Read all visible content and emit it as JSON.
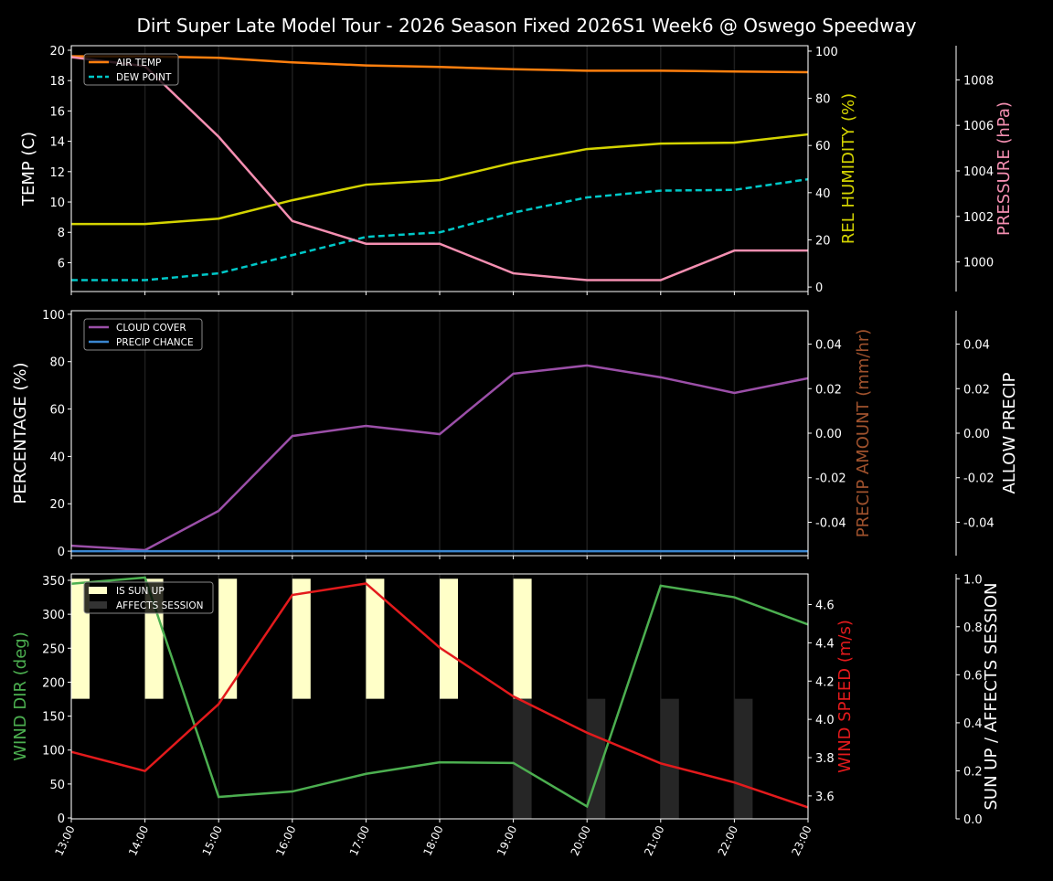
{
  "chart_data": [
    {
      "type": "line",
      "title": "Dirt Super Late Model Tour - 2026 Season Fixed 2026S1 Week6 @ Oswego Speedway",
      "x": [
        "13:00",
        "14:00",
        "15:00",
        "16:00",
        "17:00",
        "18:00",
        "19:00",
        "20:00",
        "21:00",
        "22:00",
        "23:00"
      ],
      "grid": "vertical",
      "legend_position": "top-left",
      "axes": {
        "left": {
          "label": "TEMP (C)",
          "ylim": [
            4.1,
            20.3
          ],
          "ticks": [
            6,
            8,
            10,
            12,
            14,
            16,
            18,
            20
          ],
          "color": "#ffffff"
        },
        "right": {
          "label": "REL HUMIDITY (%)",
          "ylim": [
            -1.9,
            102.3
          ],
          "ticks": [
            0,
            20,
            40,
            60,
            80,
            100
          ],
          "color": "#d4d400"
        },
        "third": {
          "label": "PRESSURE (hPa)",
          "ylim": [
            998.7,
            1009.5
          ],
          "ticks": [
            1000,
            1002,
            1004,
            1006,
            1008
          ],
          "color": "#f48fb1"
        }
      },
      "series": [
        {
          "name": "AIR TEMP",
          "axis": "left",
          "color": "#ff7f0e",
          "style": "solid",
          "in_legend": true,
          "values": [
            19.6,
            19.6,
            19.5,
            19.2,
            19.0,
            18.9,
            18.75,
            18.65,
            18.65,
            18.6,
            18.55
          ]
        },
        {
          "name": "DEW POINT",
          "axis": "left",
          "color": "#00c8c8",
          "style": "dashed",
          "in_legend": true,
          "values": [
            4.85,
            4.85,
            5.3,
            6.5,
            7.7,
            8.0,
            9.3,
            10.3,
            10.75,
            10.8,
            11.5
          ]
        },
        {
          "name": "REL HUMIDITY",
          "axis": "right",
          "color": "#d4d400",
          "style": "solid",
          "in_legend": false,
          "values": [
            26.7,
            26.7,
            29,
            36.8,
            43.4,
            45.3,
            52.7,
            58.5,
            60.8,
            61.2,
            64.7
          ]
        },
        {
          "name": "PRESSURE",
          "axis": "third",
          "color": "#f48fb1",
          "style": "solid",
          "in_legend": false,
          "values": [
            1009.0,
            1008.6,
            1005.5,
            1001.8,
            1000.8,
            1000.8,
            999.5,
            999.2,
            999.2,
            1000.5,
            1000.5
          ]
        }
      ]
    },
    {
      "type": "line",
      "x": [
        "13:00",
        "14:00",
        "15:00",
        "16:00",
        "17:00",
        "18:00",
        "19:00",
        "20:00",
        "21:00",
        "22:00",
        "23:00"
      ],
      "grid": "vertical",
      "legend_position": "top-left",
      "axes": {
        "left": {
          "label": "PERCENTAGE (%)",
          "ylim": [
            -1.9,
            101.5
          ],
          "ticks": [
            0,
            20,
            40,
            60,
            80,
            100
          ],
          "color": "#ffffff"
        },
        "right": {
          "label": "PRECIP AMOUNT (mm/hr)",
          "ylim": [
            -0.055,
            0.055
          ],
          "ticks": [
            -0.04,
            -0.02,
            0.0,
            0.02,
            0.04
          ],
          "tick_format": "2",
          "color": "#a0522d"
        },
        "third": {
          "label": "ALLOW PRECIP",
          "ylim": [
            -0.055,
            0.055
          ],
          "ticks": [
            -0.04,
            -0.02,
            0.0,
            0.02,
            0.04
          ],
          "tick_format": "2",
          "color": "#ffffff"
        }
      },
      "series": [
        {
          "name": "CLOUD COVER",
          "axis": "left",
          "color": "#9b4fa8",
          "style": "solid",
          "in_legend": true,
          "values": [
            2.3,
            0.4,
            17,
            48.6,
            52.9,
            49.4,
            74.9,
            78.4,
            73.4,
            66.8,
            73.0
          ]
        },
        {
          "name": "PRECIP CHANCE",
          "axis": "left",
          "color": "#3a86d0",
          "style": "solid",
          "in_legend": true,
          "values": [
            0,
            0,
            0,
            0,
            0,
            0,
            0,
            0,
            0,
            0,
            0
          ]
        }
      ]
    },
    {
      "type": "line",
      "x": [
        "13:00",
        "14:00",
        "15:00",
        "16:00",
        "17:00",
        "18:00",
        "19:00",
        "20:00",
        "21:00",
        "22:00",
        "23:00"
      ],
      "grid": "vertical",
      "legend_position": "top-left",
      "axes": {
        "left": {
          "label": "WIND DIR (deg)",
          "ylim": [
            -1.3,
            359.4
          ],
          "ticks": [
            0,
            50,
            100,
            150,
            200,
            250,
            300,
            350
          ],
          "color": "#4caf50"
        },
        "right": {
          "label": "WIND SPEED (m/s)",
          "ylim": [
            3.48,
            4.76
          ],
          "ticks": [
            3.6,
            3.8,
            4.0,
            4.2,
            4.4,
            4.6
          ],
          "tick_format": "1",
          "color": "#e31a1c"
        },
        "third": {
          "label": "SUN UP / AFFECTS SESSION",
          "ylim": [
            0,
            1.02
          ],
          "ticks": [
            0.0,
            0.2,
            0.4,
            0.6,
            0.8,
            1.0
          ],
          "tick_format": "1",
          "color": "#ffffff"
        }
      },
      "bars": [
        {
          "name": "IS SUN UP",
          "color": "#ffffc8",
          "values": [
            1,
            1,
            1,
            1,
            1,
            1,
            1,
            0,
            0,
            0,
            0
          ],
          "range": [
            0.5,
            1.0
          ]
        },
        {
          "name": "AFFECTS SESSION",
          "color": "#262626",
          "values": [
            0,
            0,
            0,
            0,
            0,
            0,
            1,
            1,
            1,
            1,
            0
          ],
          "range": [
            0,
            0.5
          ]
        }
      ],
      "series": [
        {
          "name": "WIND DIR",
          "axis": "left",
          "color": "#4caf50",
          "style": "solid",
          "in_legend": false,
          "values": [
            345,
            354,
            31,
            39,
            65,
            82,
            81,
            17,
            342,
            325,
            285
          ]
        },
        {
          "name": "WIND SPEED",
          "axis": "right",
          "color": "#e31a1c",
          "style": "solid",
          "in_legend": false,
          "values": [
            3.83,
            3.73,
            4.08,
            4.65,
            4.71,
            4.375,
            4.12,
            3.93,
            3.77,
            3.67,
            3.54
          ]
        }
      ]
    }
  ]
}
